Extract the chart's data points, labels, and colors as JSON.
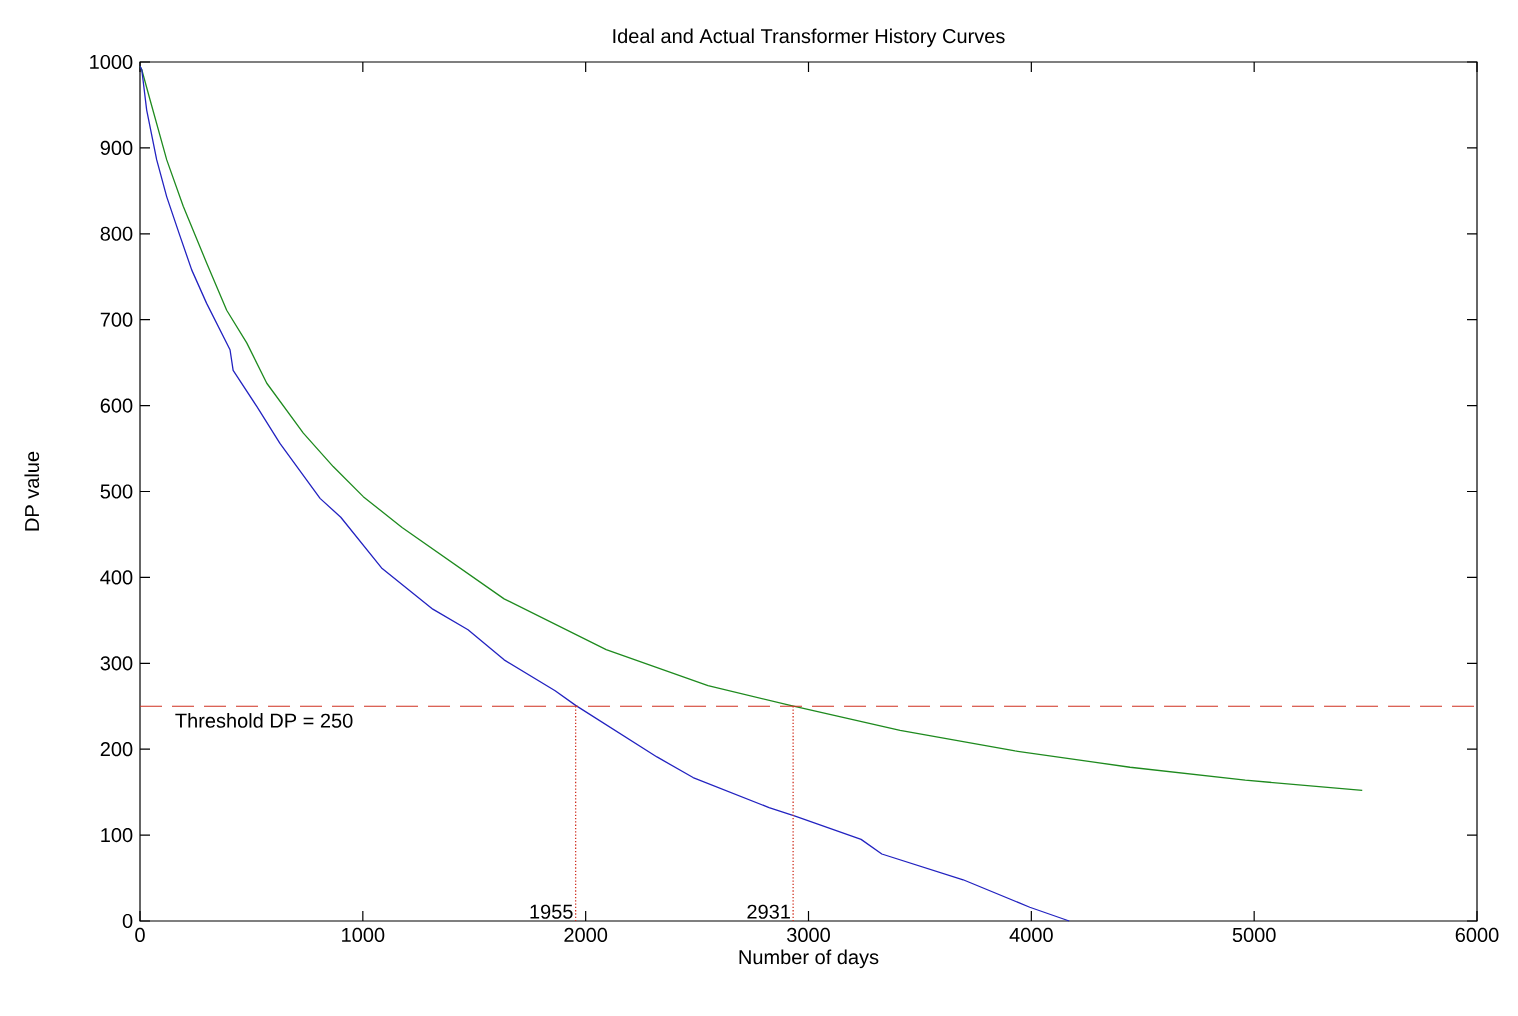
{
  "chart_data": {
    "type": "line",
    "title": "Ideal and Actual Transformer History Curves",
    "xlabel": "Number of days",
    "ylabel": "DP value",
    "xlim": [
      0,
      6000
    ],
    "ylim": [
      0,
      1000
    ],
    "xticks": [
      0,
      1000,
      2000,
      3000,
      4000,
      5000,
      6000
    ],
    "yticks": [
      0,
      100,
      200,
      300,
      400,
      500,
      600,
      700,
      800,
      900,
      1000
    ],
    "grid": false,
    "marker": "none",
    "line_style": "solid",
    "series": [
      {
        "color": "#1e8a1e",
        "x": [
          0,
          8,
          45,
          120,
          194,
          299,
          389,
          479,
          569,
          733,
          867,
          1002,
          1176,
          1634,
          2092,
          2549,
          2918,
          3411,
          3927,
          4443,
          4960,
          5485
        ],
        "values": [
          995,
          991,
          956,
          886,
          832,
          766,
          711,
          673,
          626,
          568,
          529,
          494,
          458,
          375,
          316,
          274,
          251,
          222,
          198,
          179,
          164,
          152
        ]
      },
      {
        "color": "#2222c0",
        "x": [
          0,
          8,
          30,
          75,
          120,
          180,
          232,
          299,
          404,
          418,
          524,
          628,
          808,
          901,
          1084,
          1314,
          1472,
          1634,
          1863,
          1955,
          2320,
          2482,
          2823,
          2940,
          3236,
          3329,
          3694,
          3993,
          4170
        ],
        "values": [
          995,
          991,
          944,
          886,
          843,
          797,
          758,
          719,
          665,
          641,
          599,
          556,
          492,
          470,
          411,
          363,
          339,
          304,
          268,
          251,
          191,
          167,
          132,
          122,
          95,
          78,
          48,
          16,
          0
        ]
      }
    ],
    "ref_lines": [
      {
        "axis": "y",
        "value": 250,
        "label": "Threshold DP = 250",
        "color": "#d03020",
        "line_style": "dashed"
      }
    ],
    "annotations": [
      {
        "text": "1955",
        "x": 1955,
        "y": 250
      },
      {
        "text": "2931",
        "x": 2931,
        "y": 250
      }
    ]
  }
}
